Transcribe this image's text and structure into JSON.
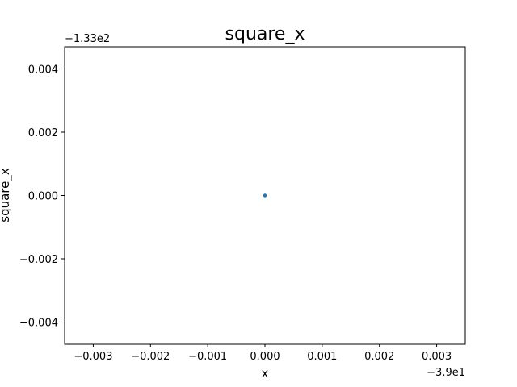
{
  "chart_data": {
    "type": "scatter",
    "title": "square_x",
    "xlabel": "x",
    "ylabel": "square_x",
    "x_offset_label": "−3.9e1",
    "y_offset_label": "−1.33e2",
    "xlim": [
      -0.0035,
      0.0035
    ],
    "ylim": [
      -0.0047,
      0.0047
    ],
    "x_ticks": [
      -0.003,
      -0.002,
      -0.001,
      0.0,
      0.001,
      0.002,
      0.003
    ],
    "x_tick_labels": [
      "−0.003",
      "−0.002",
      "−0.001",
      "0.000",
      "0.001",
      "0.002",
      "0.003"
    ],
    "y_ticks": [
      -0.004,
      -0.002,
      0.0,
      0.002,
      0.004
    ],
    "y_tick_labels": [
      "−0.004",
      "−0.002",
      "0.000",
      "0.002",
      "0.004"
    ],
    "points": [
      {
        "x": 0.0,
        "y": 0.0
      }
    ],
    "grid": false,
    "color": "#1f77b4"
  }
}
